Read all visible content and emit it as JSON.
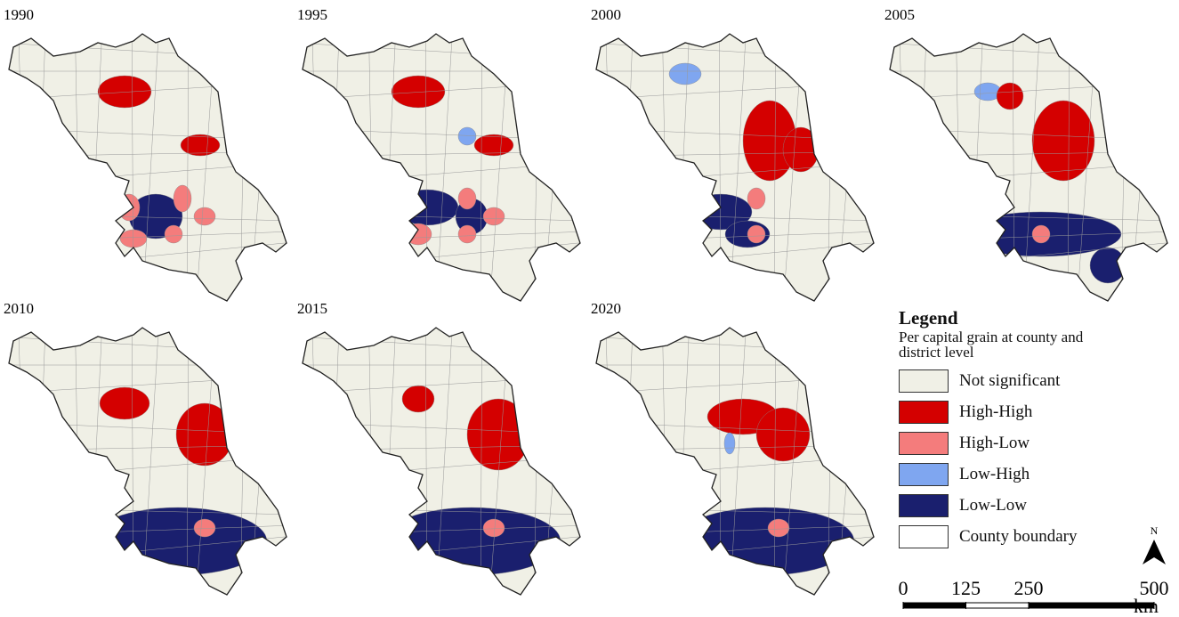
{
  "panels": [
    {
      "year": "1990"
    },
    {
      "year": "1995"
    },
    {
      "year": "2000"
    },
    {
      "year": "2005"
    },
    {
      "year": "2010"
    },
    {
      "year": "2015"
    },
    {
      "year": "2020"
    }
  ],
  "legend": {
    "title": "Legend",
    "subtitle": "Per capital grain  at county and district level",
    "items": [
      {
        "label": "Not  significant",
        "color": "#f0f0e6"
      },
      {
        "label": "High-High",
        "color": "#d40000"
      },
      {
        "label": "High-Low",
        "color": "#f47c7c"
      },
      {
        "label": "Low-High",
        "color": "#7fa6f0"
      },
      {
        "label": "Low-Low",
        "color": "#1a1f6e"
      },
      {
        "label": "County  boundary",
        "color": "#ffffff"
      }
    ]
  },
  "scale_bar": {
    "ticks": [
      0,
      125,
      250,
      500
    ],
    "unit": "km"
  },
  "north": "N"
}
